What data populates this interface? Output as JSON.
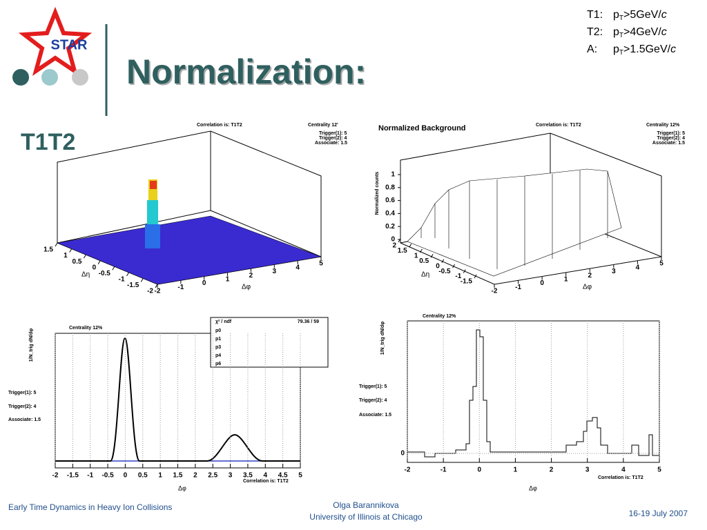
{
  "header": {
    "logo": "STAR",
    "title": "Normalization:",
    "subtitle": "T1T2",
    "cuts": [
      {
        "label": "T1:",
        "quantity": "p",
        "sub": "T",
        "cut": ">5GeV/",
        "unit": "c"
      },
      {
        "label": "T2:",
        "quantity": "p",
        "sub": "T",
        "cut": ">4GeV/",
        "unit": "c"
      },
      {
        "label": "A:",
        "quantity": "p",
        "sub": "T",
        "cut": ">1.5GeV/",
        "unit": "c"
      }
    ]
  },
  "panel_3d_raw": {
    "correlation": "Correlation is: T1T2",
    "centrality": "Centrality 12'",
    "info": [
      "Trigger(1): 5",
      "Trigger(2): 4",
      "Associate: 1.5"
    ],
    "x_label": "Δφ",
    "y_label": "Δη",
    "xticks": [
      -2,
      -1,
      0,
      1,
      2,
      3,
      4,
      5
    ],
    "yticks": [
      1.5,
      1,
      0.5,
      0,
      -0.5,
      -1,
      -1.5,
      -2
    ]
  },
  "panel_3d_bg": {
    "title": "Normalized Background",
    "correlation": "Correlation is: T1T2",
    "centrality": "Centrality 12%",
    "info": [
      "Trigger(1): 5",
      "Trigger(2): 4",
      "Associate: 1.5"
    ],
    "x_label": "Δφ",
    "y_label": "Δη",
    "z_label": "Normalized counts",
    "xticks": [
      -2,
      -1,
      0,
      1,
      2,
      3,
      4,
      5
    ],
    "yticks": [
      2,
      1.5,
      1,
      0.5,
      0,
      -0.5,
      -1,
      -1.5
    ],
    "zticks": [
      0,
      0.2,
      0.4,
      0.6,
      0.8,
      1
    ]
  },
  "panel_fit": {
    "centrality": "Centrality 12%",
    "fit_box": {
      "chi2_label": "χ² / ndf",
      "chi2_value": "79.36 / 59",
      "params": [
        "p0",
        "p1",
        "p3",
        "p4",
        "p6"
      ]
    },
    "info": [
      "Trigger(1): 5",
      "Trigger(2): 4",
      "Associate: 1.5"
    ],
    "correlation": "Correlation is: T1T2",
    "x_label": "Δφ",
    "y_label": "1/N_trig dN/dφ",
    "xlim": [
      -2,
      5
    ],
    "xticks": [
      -2,
      -1.5,
      -1,
      -0.5,
      0,
      0.5,
      1,
      1.5,
      2,
      2.5,
      3,
      3.5,
      4,
      4.5,
      5
    ]
  },
  "panel_sub": {
    "centrality": "Centrality 12%",
    "info": [
      "Trigger(1): 5",
      "Trigger(2): 4",
      "Associate: 1.5"
    ],
    "correlation": "Correlation is: T1T2",
    "x_label": "Δφ",
    "y_label": "1/N_trig dN/dφ",
    "xlim": [
      -2,
      5
    ],
    "xticks": [
      -2,
      -1,
      0,
      1,
      2,
      3,
      4,
      5
    ],
    "yticks": [
      0
    ]
  },
  "footer": {
    "left": "Early Time Dynamics in Heavy Ion Collisions",
    "center": [
      "Olga Barannikova",
      "University of Illinois at Chicago"
    ],
    "right": "16-19 July 2007"
  }
}
